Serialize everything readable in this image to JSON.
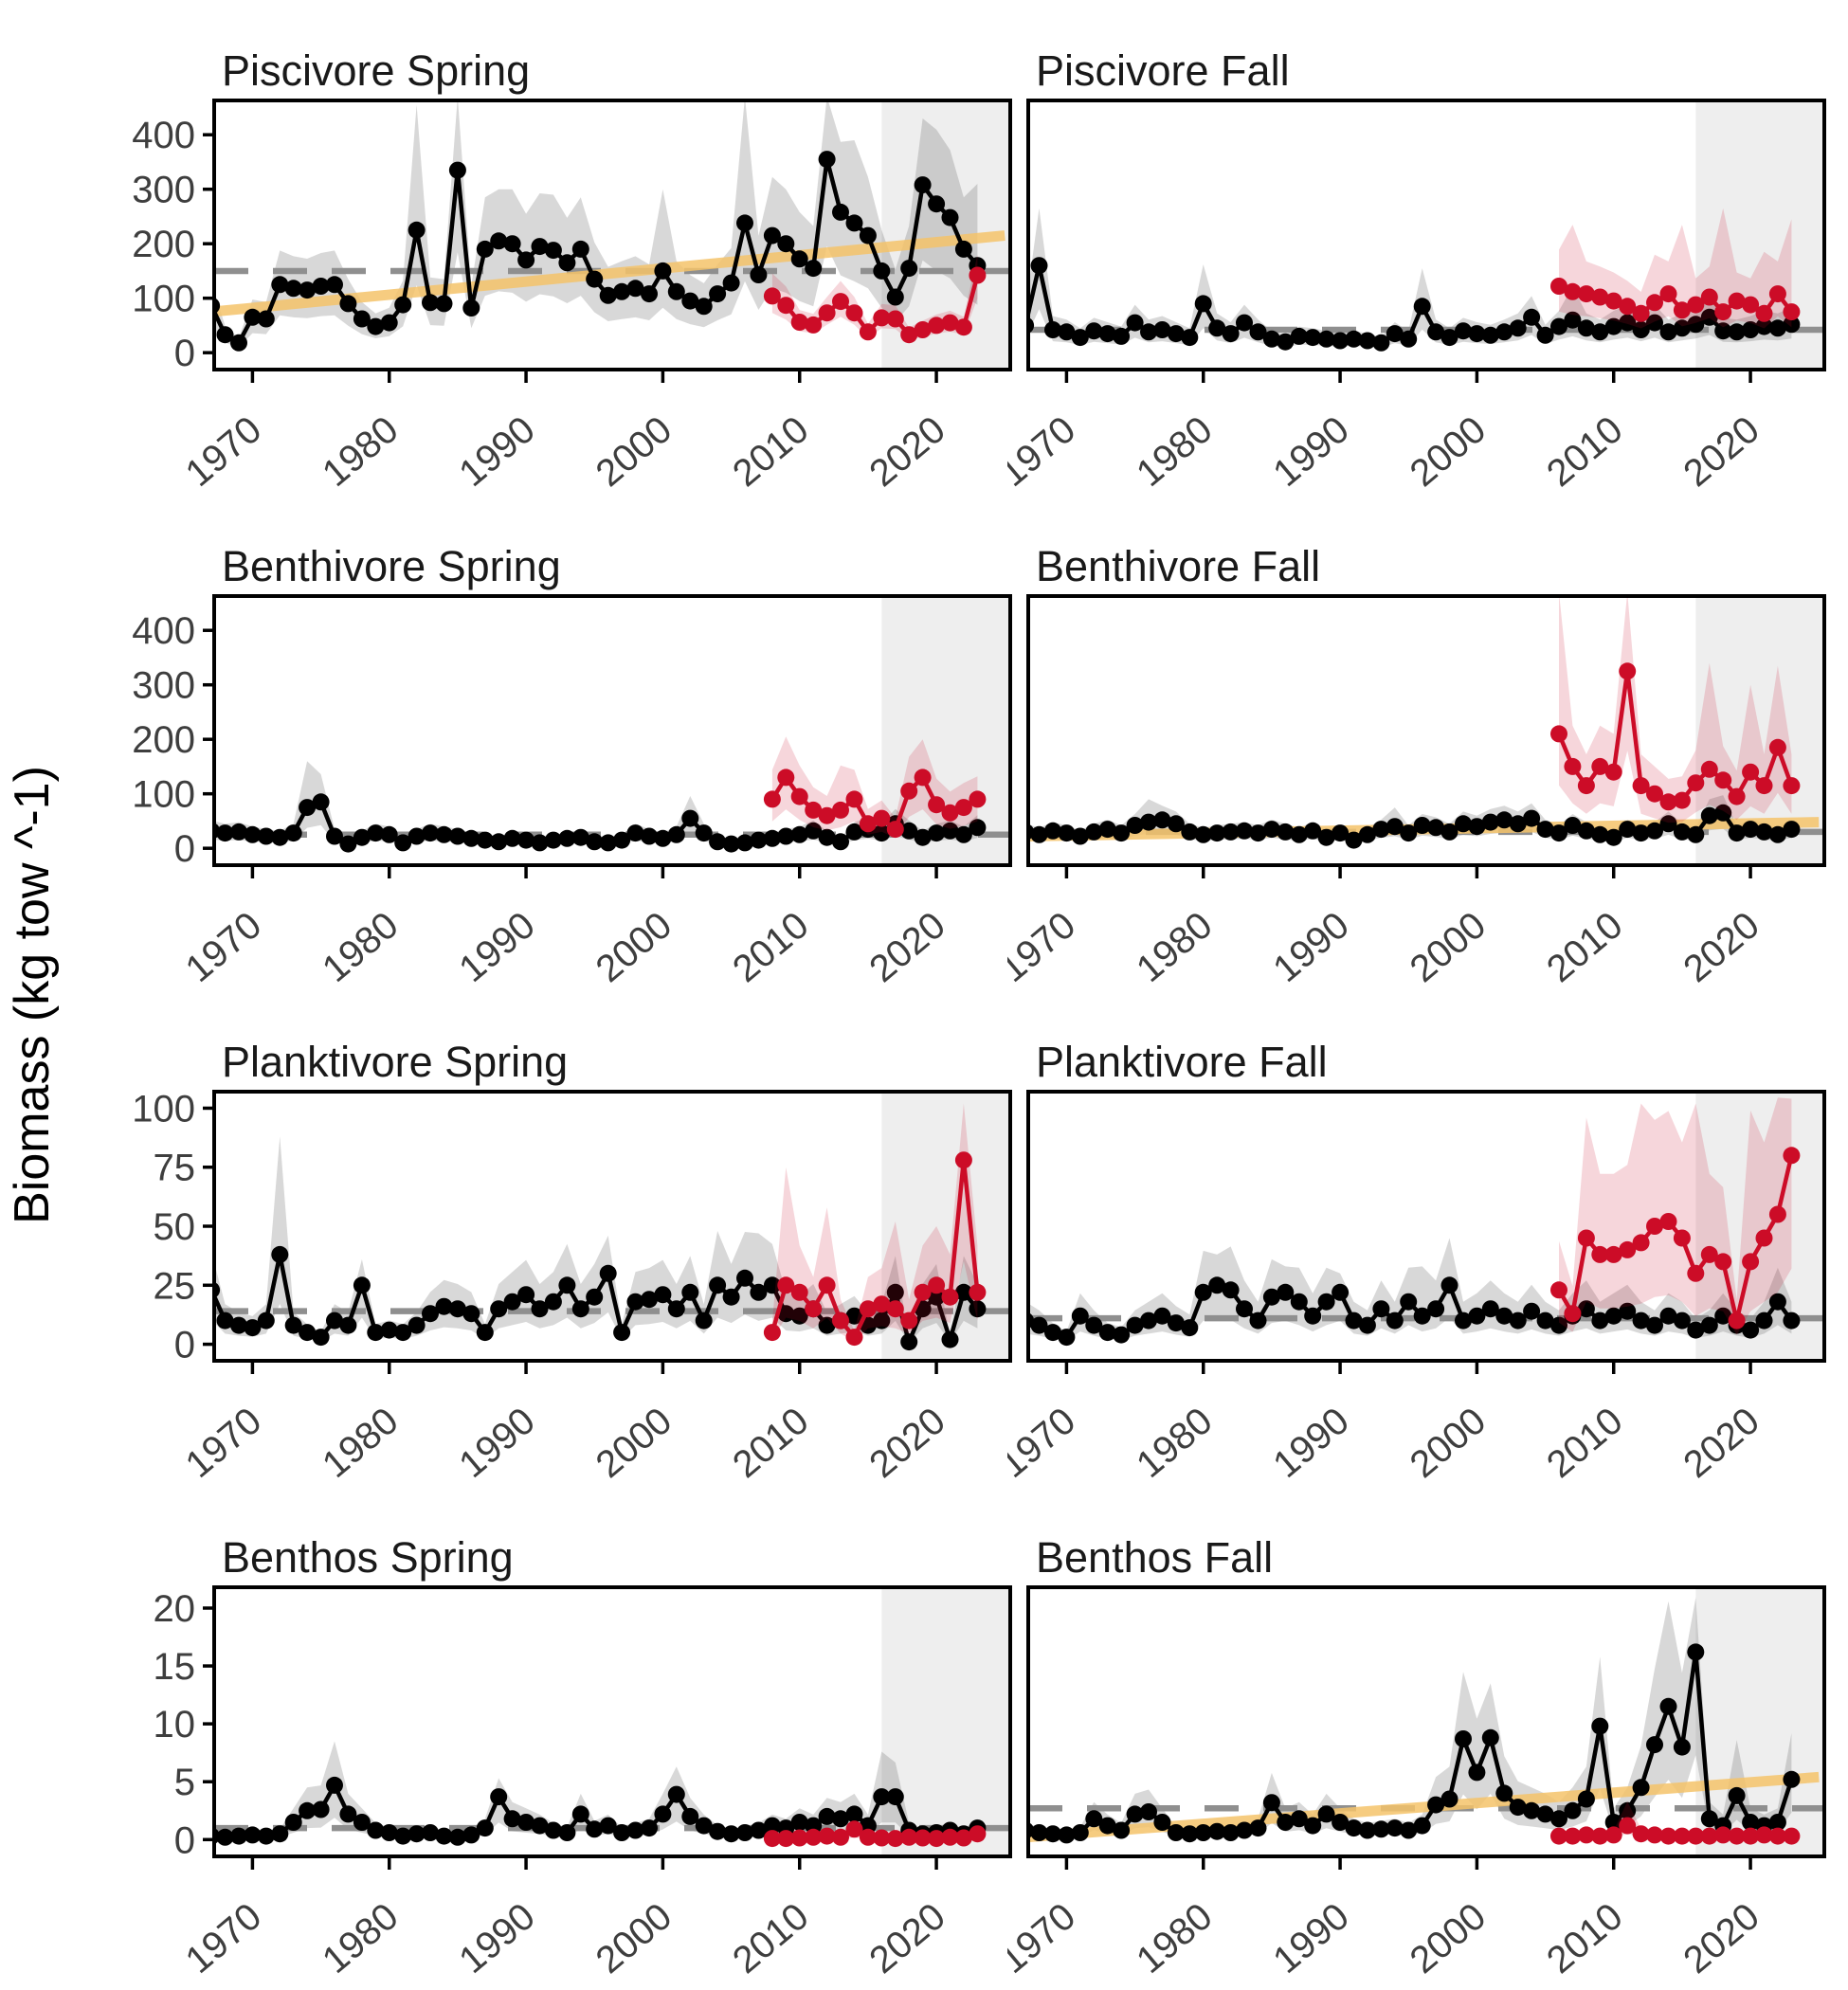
{
  "ylabel": "Biomass (kg tow ^-1)",
  "x_ticks": [
    1970,
    1980,
    1990,
    2000,
    2010,
    2020
  ],
  "x_range": [
    1967.2,
    2025.4
  ],
  "shade_start_year": 2016.0,
  "colors": {
    "black_series": "#000000",
    "red_series": "#CC0C27",
    "red_ribbon": "rgba(204,12,39,0.17)",
    "gray_ribbon": "rgba(105,105,105,0.26)",
    "mean_dash": "#8F8F8F",
    "trend_orange": "rgba(245,195,106,0.85)",
    "recent_shade": "rgba(0,0,0,0.068)",
    "axis_text": "#3E3E3E"
  },
  "chart_data": [
    {
      "type": "line",
      "title": "Piscivore Spring",
      "ylim": [
        -31,
        463
      ],
      "y_ticks": [
        0,
        100,
        200,
        300,
        400
      ],
      "show_y_labels": true,
      "mean": 150,
      "trend": {
        "x0": 1967,
        "v0": 75,
        "x1": 2025,
        "v1": 215
      },
      "black": {
        "start_year": 1967,
        "band": [
          0.55,
          1.5
        ],
        "values": [
          86,
          33,
          18,
          65,
          62,
          125,
          118,
          115,
          122,
          125,
          90,
          62,
          48,
          55,
          88,
          225,
          92,
          90,
          335,
          82,
          190,
          205,
          200,
          170,
          195,
          188,
          165,
          190,
          135,
          105,
          112,
          118,
          108,
          150,
          112,
          95,
          85,
          108,
          128,
          238,
          143,
          215,
          200,
          172,
          155,
          355,
          258,
          238,
          215,
          150,
          102,
          155,
          308,
          273,
          248,
          190,
          160
        ],
        "hi_spikes": {
          "1982": 455,
          "1985": 470,
          "1988": 300,
          "1992": 290,
          "2000": 300,
          "2006": 470,
          "2012": 470,
          "2014": 390,
          "2019": 430,
          "2023": 310
        }
      },
      "red": {
        "start_year": 2008,
        "band": [
          0.7,
          1.4
        ],
        "values": [
          104,
          87,
          56,
          51,
          73,
          94,
          73,
          38,
          64,
          62,
          33,
          42,
          50,
          55,
          47,
          142
        ],
        "hi_spikes": {
          "2023": 180
        }
      }
    },
    {
      "type": "line",
      "title": "Piscivore Fall",
      "ylim": [
        -31,
        463
      ],
      "y_ticks": [
        0,
        100,
        200,
        300,
        400
      ],
      "show_y_labels": false,
      "mean": 42,
      "trend": null,
      "black": {
        "start_year": 1967,
        "band": [
          0.5,
          1.6
        ],
        "values": [
          50,
          160,
          42,
          38,
          28,
          40,
          35,
          30,
          55,
          38,
          42,
          35,
          28,
          90,
          45,
          35,
          55,
          38,
          25,
          20,
          30,
          28,
          25,
          22,
          25,
          22,
          18,
          35,
          25,
          85,
          38,
          28,
          40,
          35,
          32,
          38,
          45,
          65,
          32,
          48,
          60,
          45,
          38,
          48,
          55,
          42,
          55,
          38,
          45,
          52,
          65,
          40,
          38,
          42,
          48,
          45,
          52
        ],
        "hi_spikes": {
          "1968": 265,
          "1980": 162,
          "1996": 155,
          "2007": 122
        }
      },
      "red": {
        "start_year": 2006,
        "band": [
          0.62,
          1.55
        ],
        "values": [
          122,
          112,
          108,
          102,
          95,
          85,
          72,
          92,
          108,
          78,
          88,
          102,
          75,
          95,
          88,
          72,
          108,
          75
        ],
        "hi_spikes": {
          "2007": 235,
          "2013": 180,
          "2015": 235,
          "2018": 265,
          "2021": 185,
          "2023": 245
        }
      }
    },
    {
      "type": "line",
      "title": "Benthivore Spring",
      "ylim": [
        -31,
        463
      ],
      "y_ticks": [
        0,
        100,
        200,
        300,
        400
      ],
      "show_y_labels": true,
      "mean": 25,
      "trend": null,
      "black": {
        "start_year": 1967,
        "band": [
          0.5,
          1.6
        ],
        "values": [
          32,
          28,
          30,
          25,
          22,
          20,
          28,
          75,
          85,
          22,
          8,
          20,
          28,
          25,
          10,
          22,
          28,
          25,
          22,
          18,
          15,
          12,
          18,
          15,
          10,
          15,
          18,
          20,
          12,
          10,
          15,
          28,
          22,
          18,
          25,
          55,
          28,
          12,
          8,
          10,
          15,
          18,
          22,
          25,
          32,
          20,
          12,
          30,
          35,
          28,
          45,
          32,
          20,
          28,
          32,
          25,
          38
        ],
        "hi_spikes": {
          "1974": 160,
          "2002": 96
        }
      },
      "red": {
        "start_year": 2008,
        "band": [
          0.55,
          1.6
        ],
        "values": [
          90,
          130,
          95,
          70,
          60,
          70,
          90,
          45,
          55,
          35,
          105,
          130,
          80,
          65,
          75,
          90
        ],
        "hi_spikes": {
          "2009": 205,
          "2013": 152,
          "2019": 200,
          "2023": 132
        }
      }
    },
    {
      "type": "line",
      "title": "Benthivore Fall",
      "ylim": [
        -31,
        463
      ],
      "y_ticks": [
        0,
        100,
        200,
        300,
        400
      ],
      "show_y_labels": false,
      "mean": 30,
      "trend": {
        "x0": 1967,
        "v0": 22,
        "x1": 2025,
        "v1": 48
      },
      "black": {
        "start_year": 1967,
        "band": [
          0.55,
          1.5
        ],
        "values": [
          30,
          25,
          32,
          28,
          22,
          30,
          35,
          28,
          42,
          48,
          52,
          45,
          30,
          25,
          28,
          30,
          32,
          28,
          35,
          30,
          25,
          32,
          20,
          28,
          15,
          25,
          35,
          40,
          28,
          42,
          38,
          30,
          45,
          40,
          48,
          52,
          45,
          55,
          35,
          28,
          42,
          32,
          25,
          20,
          35,
          28,
          32,
          45,
          30,
          25,
          60,
          65,
          28,
          35,
          30,
          25,
          35
        ],
        "hi_spikes": {
          "1976": 90,
          "1994": 75
        }
      },
      "red": {
        "start_year": 2006,
        "band": [
          0.55,
          1.5
        ],
        "values": [
          210,
          150,
          115,
          150,
          140,
          325,
          115,
          100,
          85,
          88,
          120,
          145,
          125,
          95,
          140,
          115,
          185,
          115
        ],
        "hi_spikes": {
          "2006": 470,
          "2011": 470,
          "2017": 340,
          "2020": 300,
          "2022": 335
        }
      }
    },
    {
      "type": "line",
      "title": "Planktivore Spring",
      "ylim": [
        -7,
        107
      ],
      "y_ticks": [
        0,
        25,
        50,
        75,
        100
      ],
      "show_y_labels": true,
      "mean": 14,
      "trend": null,
      "black": {
        "start_year": 1967,
        "band": [
          0.45,
          1.7
        ],
        "values": [
          23,
          10,
          8,
          7,
          10,
          38,
          8,
          5,
          3,
          10,
          8,
          25,
          5,
          6,
          5,
          8,
          13,
          16,
          15,
          13,
          5,
          15,
          18,
          21,
          15,
          18,
          25,
          15,
          20,
          30,
          5,
          18,
          19,
          21,
          15,
          22,
          10,
          25,
          20,
          28,
          22,
          25,
          13,
          12,
          15,
          8,
          10,
          12,
          8,
          10,
          22,
          1,
          15,
          20,
          2,
          22,
          15
        ],
        "hi_spikes": {
          "1972": 88,
          "1978": 36,
          "1996": 46,
          "2004": 48,
          "2007": 47
        }
      },
      "red": {
        "start_year": 2008,
        "band": [
          0.45,
          1.9
        ],
        "values": [
          5,
          25,
          22,
          15,
          25,
          10,
          3,
          15,
          17,
          15,
          10,
          22,
          25,
          20,
          78,
          22
        ],
        "hi_spikes": {
          "2009": 75,
          "2012": 58,
          "2017": 52,
          "2020": 50,
          "2022": 102
        }
      }
    },
    {
      "type": "line",
      "title": "Planktivore Fall",
      "ylim": [
        -7,
        107
      ],
      "y_ticks": [
        0,
        25,
        50,
        75,
        100
      ],
      "show_y_labels": false,
      "mean": 11,
      "trend": null,
      "black": {
        "start_year": 1967,
        "band": [
          0.45,
          1.8
        ],
        "values": [
          10,
          8,
          5,
          3,
          12,
          8,
          5,
          4,
          8,
          10,
          12,
          9,
          7,
          22,
          25,
          23,
          15,
          10,
          20,
          22,
          18,
          12,
          18,
          22,
          10,
          8,
          15,
          10,
          18,
          12,
          15,
          25,
          10,
          12,
          15,
          12,
          10,
          14,
          10,
          8,
          12,
          15,
          10,
          12,
          14,
          10,
          8,
          12,
          10,
          6,
          8,
          12,
          8,
          6,
          10,
          18,
          10
        ],
        "hi_spikes": {
          "1981": 38,
          "1986": 33,
          "1990": 30,
          "1996": 33
        }
      },
      "red": {
        "start_year": 2006,
        "band": [
          0.4,
          1.9
        ],
        "values": [
          23,
          13,
          45,
          38,
          38,
          40,
          43,
          50,
          52,
          45,
          30,
          38,
          35,
          10,
          35,
          45,
          55,
          80
        ],
        "hi_spikes": {
          "2008": 96,
          "2012": 102,
          "2016": 102,
          "2020": 99,
          "2023": 104
        }
      }
    },
    {
      "type": "line",
      "title": "Benthos Spring",
      "ylim": [
        -1.45,
        21.8
      ],
      "y_ticks": [
        0,
        5,
        10,
        15,
        20
      ],
      "show_y_labels": true,
      "mean": 1.0,
      "trend": null,
      "black": {
        "start_year": 1967,
        "band": [
          0.4,
          1.8
        ],
        "values": [
          0.3,
          0.2,
          0.3,
          0.4,
          0.3,
          0.5,
          1.5,
          2.5,
          2.6,
          4.7,
          2.2,
          1.5,
          0.8,
          0.6,
          0.3,
          0.5,
          0.6,
          0.3,
          0.2,
          0.4,
          1.0,
          3.7,
          1.8,
          1.5,
          1.2,
          0.8,
          0.6,
          2.2,
          0.9,
          1.2,
          0.6,
          0.8,
          1.0,
          2.2,
          3.9,
          2.0,
          1.2,
          0.7,
          0.5,
          0.6,
          0.8,
          1.2,
          1.0,
          1.5,
          1.2,
          2.0,
          1.8,
          2.2,
          1.2,
          3.7,
          3.7,
          0.8,
          0.5,
          0.6,
          0.8,
          0.5,
          1.0
        ],
        "hi_spikes": {
          "1976": 8.5,
          "1988": 5.3,
          "2001": 6.3,
          "2016": 7.6
        }
      },
      "red": {
        "start_year": 2008,
        "band": [
          0.2,
          2.5
        ],
        "values": [
          0.1,
          0.1,
          0.15,
          0.2,
          0.3,
          0.2,
          0.9,
          0.2,
          0.15,
          0.1,
          0.2,
          0.15,
          0.1,
          0.2,
          0.15,
          0.5
        ],
        "hi_spikes": {
          "2014": 1.6
        }
      }
    },
    {
      "type": "line",
      "title": "Benthos Fall",
      "ylim": [
        -1.45,
        21.8
      ],
      "y_ticks": [
        0,
        5,
        10,
        15,
        20
      ],
      "show_y_labels": false,
      "mean": 2.7,
      "trend": {
        "x0": 1967,
        "v0": 0.2,
        "x1": 2025,
        "v1": 5.4
      },
      "black": {
        "start_year": 1967,
        "band": [
          0.45,
          1.8
        ],
        "values": [
          0.8,
          0.6,
          0.5,
          0.4,
          0.6,
          1.8,
          1.2,
          0.8,
          2.2,
          2.4,
          1.5,
          0.6,
          0.5,
          0.6,
          0.7,
          0.6,
          0.8,
          1.0,
          3.2,
          1.5,
          1.8,
          1.2,
          2.2,
          1.5,
          1.0,
          0.8,
          0.9,
          1.0,
          0.8,
          1.2,
          3.0,
          3.5,
          8.7,
          5.8,
          8.8,
          4.0,
          2.8,
          2.5,
          2.2,
          1.8,
          2.5,
          3.5,
          9.8,
          1.5,
          2.5,
          4.5,
          8.2,
          11.5,
          8.0,
          16.2,
          1.8,
          1.2,
          3.8,
          1.5,
          1.2,
          1.5,
          5.2
        ],
        "hi_spikes": {
          "1999": 14.5,
          "2001": 13.5,
          "2009": 15.8,
          "2014": 20.6,
          "2016": 20.9,
          "2019": 8.6,
          "2023": 9.2
        }
      },
      "red": {
        "start_year": 2006,
        "band": [
          0.4,
          1.9
        ],
        "values": [
          0.3,
          0.3,
          0.4,
          0.3,
          0.4,
          1.2,
          0.5,
          0.4,
          0.3,
          0.3,
          0.3,
          0.3,
          0.4,
          0.3,
          0.3,
          0.4,
          0.3,
          0.3
        ],
        "hi_spikes": {
          "2011": 3.3
        }
      }
    }
  ]
}
